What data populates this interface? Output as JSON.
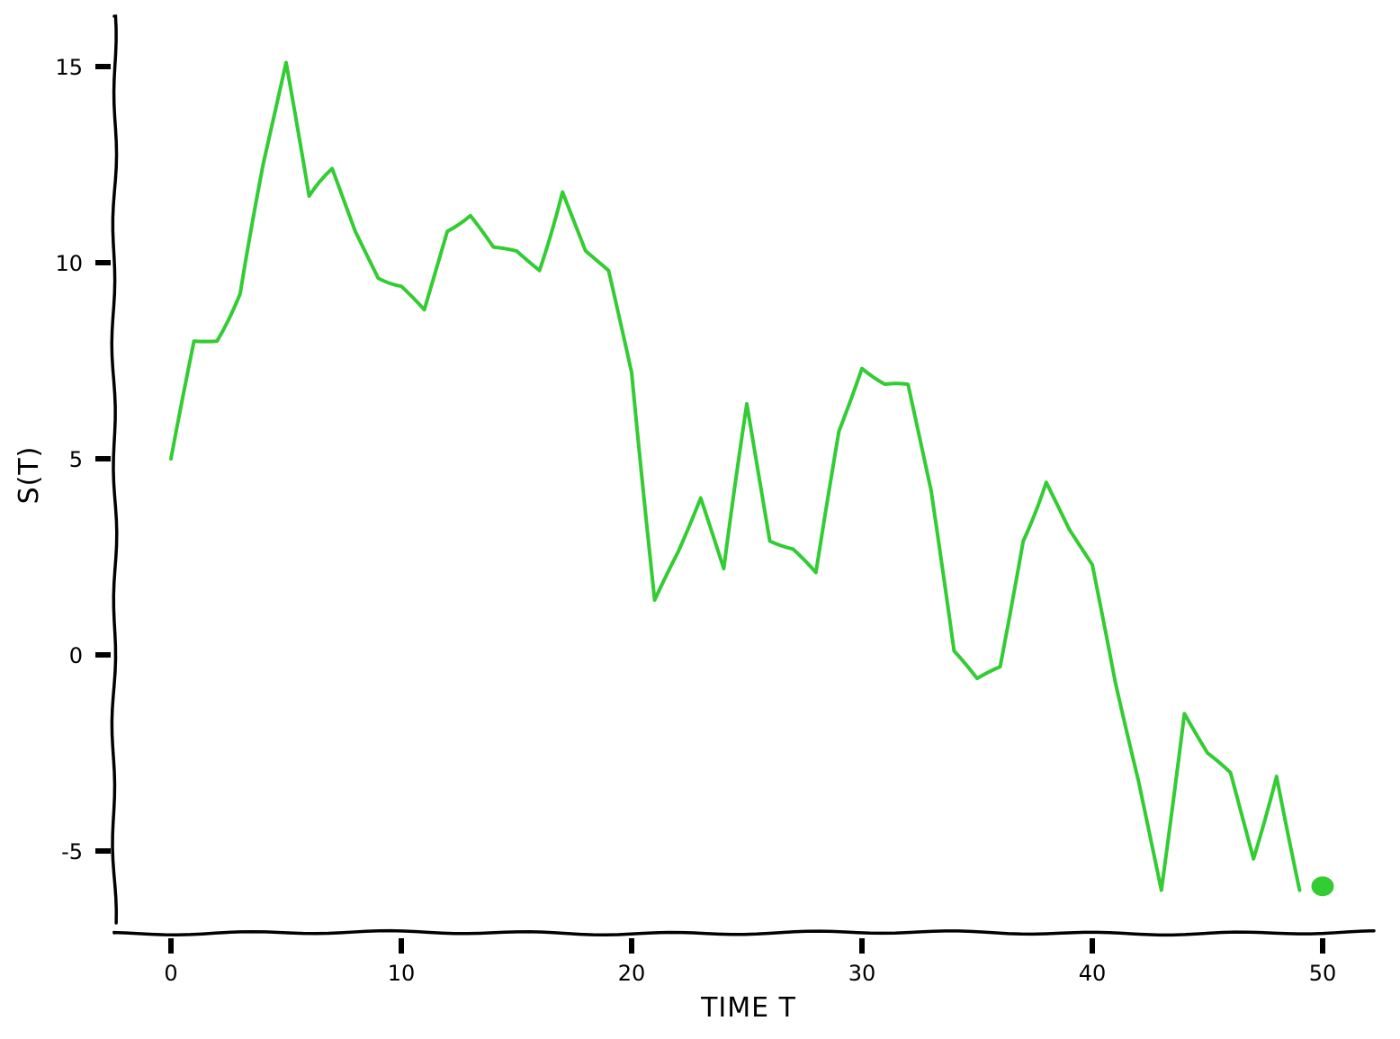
{
  "chart_data": {
    "type": "line",
    "style": "xkcd",
    "title": "",
    "xlabel": "TIME T",
    "ylabel": "S(T)",
    "xlim": [
      -2.5,
      52.5
    ],
    "ylim": [
      -7,
      16.5
    ],
    "xticks": [
      0,
      10,
      20,
      30,
      40,
      50
    ],
    "yticks": [
      -5,
      0,
      5,
      10,
      15
    ],
    "xtick_labels": [
      "0",
      "10",
      "20",
      "30",
      "40",
      "50"
    ],
    "ytick_labels": [
      "-5",
      "0",
      "5",
      "10",
      "15"
    ],
    "grid": false,
    "line_color": "#33cc33",
    "series": [
      {
        "x": [
          0,
          1,
          2,
          3,
          4,
          5,
          6,
          7,
          8,
          9,
          10,
          11,
          12,
          13,
          14,
          15,
          16,
          17,
          18,
          19,
          20,
          21,
          22,
          23,
          24,
          25,
          26,
          27,
          28,
          29,
          30,
          31,
          32,
          33,
          34,
          35,
          36,
          37,
          38,
          39,
          40,
          41,
          42,
          43,
          44,
          45,
          46,
          47,
          48,
          49
        ],
        "values": [
          5.0,
          8.0,
          8.0,
          9.2,
          12.5,
          15.1,
          11.7,
          12.4,
          10.8,
          9.6,
          9.4,
          8.8,
          10.8,
          11.2,
          10.4,
          10.3,
          9.8,
          11.8,
          10.3,
          9.8,
          7.2,
          1.4,
          2.6,
          4.0,
          2.2,
          6.4,
          2.9,
          2.7,
          2.1,
          5.7,
          7.3,
          6.9,
          6.9,
          4.2,
          0.1,
          -0.6,
          -0.3,
          2.9,
          4.4,
          3.2,
          2.3,
          -0.7,
          -3.2,
          -6.0,
          -1.5,
          -2.5,
          -3.0,
          -5.2,
          -3.1,
          -6.0
        ]
      }
    ],
    "final_point": {
      "x": 50,
      "y": -5.9
    }
  }
}
